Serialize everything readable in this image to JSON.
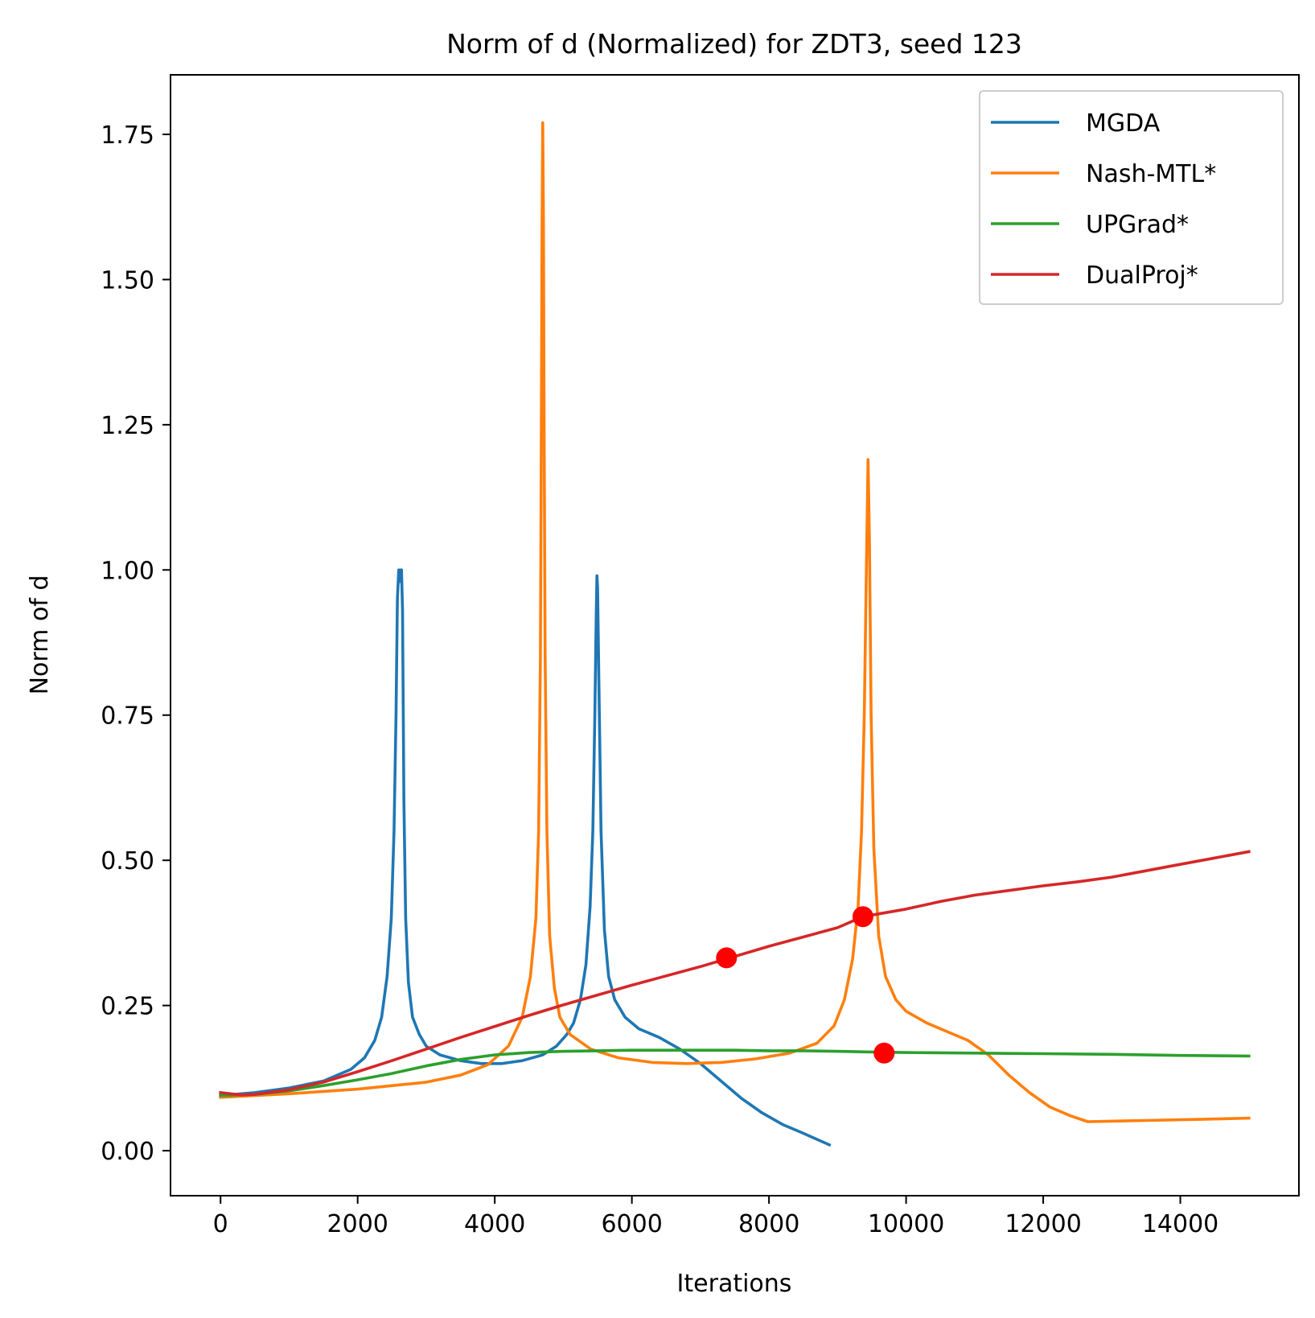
{
  "chart_data": {
    "type": "line",
    "title": "Norm of d (Normalized) for ZDT3, seed 123",
    "xlabel": "Iterations",
    "ylabel": "Norm of d",
    "xlim": [
      -730,
      15730
    ],
    "ylim": [
      -0.0775,
      1.8525
    ],
    "xticks": [
      0,
      2000,
      4000,
      6000,
      8000,
      10000,
      12000,
      14000
    ],
    "xtick_labels": [
      "0",
      "2000",
      "4000",
      "6000",
      "8000",
      "10000",
      "12000",
      "14000"
    ],
    "yticks": [
      0.0,
      0.25,
      0.5,
      0.75,
      1.0,
      1.25,
      1.5,
      1.75
    ],
    "ytick_labels": [
      "0.00",
      "0.25",
      "0.50",
      "0.75",
      "1.00",
      "1.25",
      "1.50",
      "1.75"
    ],
    "grid": false,
    "legend_position": "top-right",
    "series": [
      {
        "name": "MGDA",
        "color": "#1f77b4",
        "points": [
          [
            0,
            0.095
          ],
          [
            500,
            0.1
          ],
          [
            1000,
            0.108
          ],
          [
            1500,
            0.12
          ],
          [
            1900,
            0.14
          ],
          [
            2100,
            0.16
          ],
          [
            2250,
            0.19
          ],
          [
            2350,
            0.23
          ],
          [
            2430,
            0.3
          ],
          [
            2490,
            0.4
          ],
          [
            2530,
            0.55
          ],
          [
            2560,
            0.75
          ],
          [
            2580,
            0.95
          ],
          [
            2600,
            1.0
          ],
          [
            2615,
            0.98
          ],
          [
            2625,
            1.0
          ],
          [
            2640,
            1.0
          ],
          [
            2655,
            0.93
          ],
          [
            2675,
            0.6
          ],
          [
            2700,
            0.4
          ],
          [
            2740,
            0.29
          ],
          [
            2800,
            0.23
          ],
          [
            2900,
            0.2
          ],
          [
            3000,
            0.18
          ],
          [
            3200,
            0.165
          ],
          [
            3500,
            0.155
          ],
          [
            3800,
            0.15
          ],
          [
            4100,
            0.15
          ],
          [
            4400,
            0.155
          ],
          [
            4700,
            0.165
          ],
          [
            4900,
            0.18
          ],
          [
            5050,
            0.2
          ],
          [
            5150,
            0.22
          ],
          [
            5250,
            0.26
          ],
          [
            5330,
            0.32
          ],
          [
            5390,
            0.42
          ],
          [
            5430,
            0.55
          ],
          [
            5460,
            0.75
          ],
          [
            5480,
            0.92
          ],
          [
            5490,
            0.99
          ],
          [
            5500,
            0.97
          ],
          [
            5520,
            0.8
          ],
          [
            5550,
            0.55
          ],
          [
            5600,
            0.38
          ],
          [
            5660,
            0.3
          ],
          [
            5750,
            0.26
          ],
          [
            5900,
            0.23
          ],
          [
            6100,
            0.21
          ],
          [
            6400,
            0.195
          ],
          [
            6700,
            0.175
          ],
          [
            7000,
            0.15
          ],
          [
            7300,
            0.12
          ],
          [
            7600,
            0.09
          ],
          [
            7900,
            0.065
          ],
          [
            8200,
            0.045
          ],
          [
            8500,
            0.03
          ],
          [
            8880,
            0.01
          ]
        ]
      },
      {
        "name": "Nash-MTL*",
        "color": "#ff7f0e",
        "points": [
          [
            0,
            0.092
          ],
          [
            1000,
            0.098
          ],
          [
            2000,
            0.106
          ],
          [
            3000,
            0.118
          ],
          [
            3500,
            0.13
          ],
          [
            3900,
            0.148
          ],
          [
            4200,
            0.18
          ],
          [
            4400,
            0.23
          ],
          [
            4520,
            0.3
          ],
          [
            4600,
            0.4
          ],
          [
            4640,
            0.55
          ],
          [
            4665,
            0.85
          ],
          [
            4680,
            1.25
          ],
          [
            4690,
            1.6
          ],
          [
            4700,
            1.77
          ],
          [
            4710,
            1.6
          ],
          [
            4720,
            1.25
          ],
          [
            4735,
            0.85
          ],
          [
            4760,
            0.55
          ],
          [
            4800,
            0.37
          ],
          [
            4870,
            0.28
          ],
          [
            4950,
            0.23
          ],
          [
            5100,
            0.2
          ],
          [
            5400,
            0.175
          ],
          [
            5800,
            0.16
          ],
          [
            6300,
            0.152
          ],
          [
            6800,
            0.15
          ],
          [
            7300,
            0.152
          ],
          [
            7800,
            0.158
          ],
          [
            8300,
            0.168
          ],
          [
            8700,
            0.185
          ],
          [
            8950,
            0.215
          ],
          [
            9100,
            0.26
          ],
          [
            9220,
            0.33
          ],
          [
            9300,
            0.42
          ],
          [
            9350,
            0.55
          ],
          [
            9390,
            0.75
          ],
          [
            9420,
            1.0
          ],
          [
            9445,
            1.19
          ],
          [
            9465,
            1.05
          ],
          [
            9490,
            0.75
          ],
          [
            9530,
            0.52
          ],
          [
            9600,
            0.37
          ],
          [
            9700,
            0.3
          ],
          [
            9850,
            0.26
          ],
          [
            10000,
            0.24
          ],
          [
            10300,
            0.22
          ],
          [
            10600,
            0.205
          ],
          [
            10900,
            0.19
          ],
          [
            11200,
            0.165
          ],
          [
            11500,
            0.13
          ],
          [
            11800,
            0.1
          ],
          [
            12100,
            0.075
          ],
          [
            12400,
            0.06
          ],
          [
            12650,
            0.05
          ],
          [
            13500,
            0.052
          ],
          [
            14300,
            0.054
          ],
          [
            15000,
            0.056
          ]
        ]
      },
      {
        "name": "UPGrad*",
        "color": "#2ca02c",
        "points": [
          [
            0,
            0.095
          ],
          [
            500,
            0.097
          ],
          [
            1000,
            0.103
          ],
          [
            1500,
            0.112
          ],
          [
            2000,
            0.122
          ],
          [
            2500,
            0.133
          ],
          [
            3000,
            0.146
          ],
          [
            3500,
            0.157
          ],
          [
            4000,
            0.165
          ],
          [
            4500,
            0.169
          ],
          [
            5000,
            0.171
          ],
          [
            5500,
            0.172
          ],
          [
            6000,
            0.173
          ],
          [
            6500,
            0.173
          ],
          [
            7000,
            0.173
          ],
          [
            7500,
            0.173
          ],
          [
            8000,
            0.172
          ],
          [
            8500,
            0.172
          ],
          [
            9000,
            0.171
          ],
          [
            9500,
            0.17
          ],
          [
            10000,
            0.169
          ],
          [
            11000,
            0.168
          ],
          [
            12000,
            0.167
          ],
          [
            13000,
            0.166
          ],
          [
            14000,
            0.164
          ],
          [
            15000,
            0.163
          ]
        ]
      },
      {
        "name": "DualProj*",
        "color": "#d62728",
        "points": [
          [
            0,
            0.1
          ],
          [
            300,
            0.096
          ],
          [
            500,
            0.097
          ],
          [
            1000,
            0.105
          ],
          [
            1500,
            0.118
          ],
          [
            2000,
            0.136
          ],
          [
            2500,
            0.155
          ],
          [
            3000,
            0.175
          ],
          [
            3500,
            0.195
          ],
          [
            4000,
            0.214
          ],
          [
            4500,
            0.233
          ],
          [
            5000,
            0.251
          ],
          [
            5500,
            0.268
          ],
          [
            6000,
            0.285
          ],
          [
            6500,
            0.301
          ],
          [
            7000,
            0.317
          ],
          [
            7400,
            0.331
          ],
          [
            8000,
            0.352
          ],
          [
            8500,
            0.368
          ],
          [
            9000,
            0.384
          ],
          [
            9370,
            0.403
          ],
          [
            10000,
            0.416
          ],
          [
            10500,
            0.429
          ],
          [
            11000,
            0.44
          ],
          [
            11500,
            0.448
          ],
          [
            12000,
            0.456
          ],
          [
            12500,
            0.463
          ],
          [
            13000,
            0.471
          ],
          [
            13500,
            0.482
          ],
          [
            14000,
            0.493
          ],
          [
            14500,
            0.504
          ],
          [
            15000,
            0.515
          ]
        ]
      }
    ],
    "markers": {
      "color": "#ff0000",
      "points": [
        [
          7380,
          0.332
        ],
        [
          9370,
          0.403
        ],
        [
          9680,
          0.168
        ]
      ]
    }
  }
}
